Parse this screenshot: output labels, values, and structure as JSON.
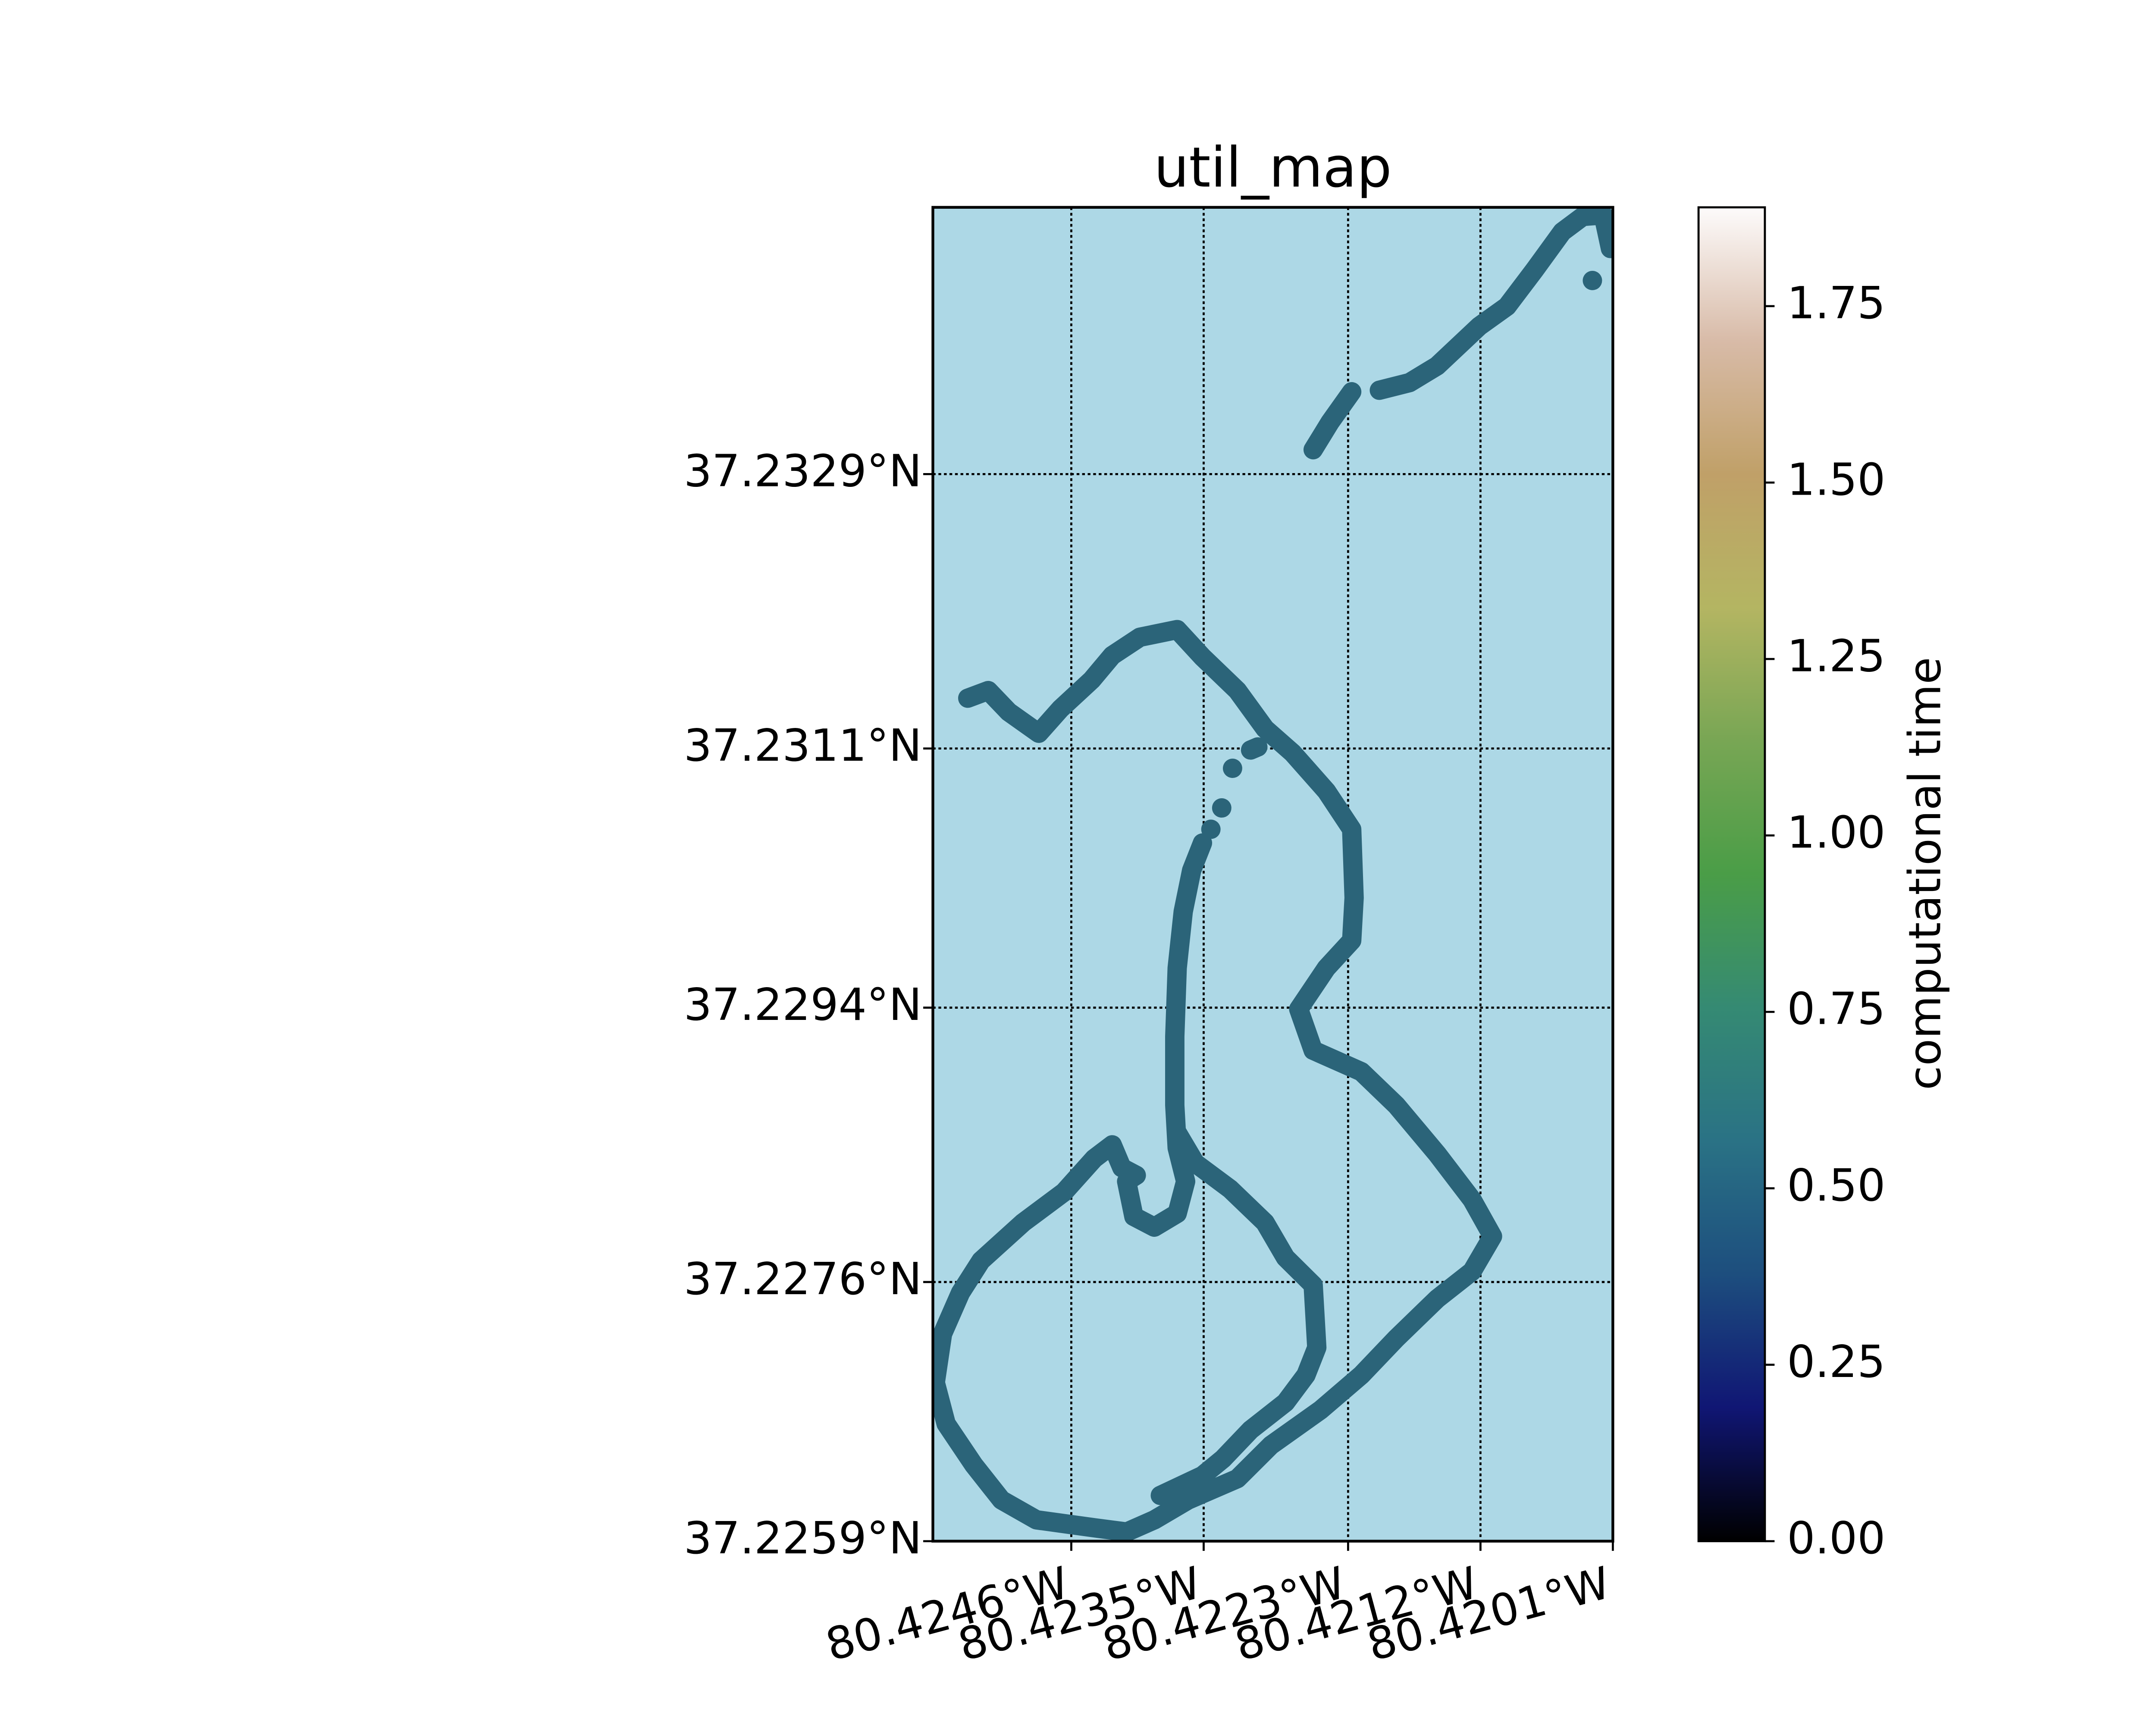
{
  "chart_data": {
    "type": "line",
    "title": "util_map",
    "x": [
      -80.42259,
      -80.42245,
      -80.42227,
      null,
      -80.42204,
      -80.42179,
      -80.42156,
      -80.42121,
      -80.42098,
      -80.42075,
      -80.42052,
      -80.42035,
      -80.42018,
      -80.42012,
      null,
      -80.42027,
      null,
      -80.42546,
      -80.42529,
      -80.42512,
      -80.42487,
      -80.42469,
      -80.42443,
      -80.42426,
      -80.42403,
      -80.42372,
      -80.42351,
      -80.42322,
      -80.42299,
      -80.42276,
      -80.42248,
      -80.42227,
      -80.42225,
      -80.42227,
      -80.42248,
      -80.42271,
      -80.42259,
      -80.42219,
      -80.4219,
      -80.42156,
      -80.42127,
      -80.4211,
      -80.42127,
      -80.42156,
      -80.4219,
      -80.42219,
      -80.42253,
      -80.42294,
      -80.42322,
      -80.42363,
      -80.42391,
      -80.42414,
      -80.42443,
      -80.42489,
      -80.42518,
      -80.42541,
      -80.42564,
      -80.42573,
      -80.42567,
      -80.42552,
      -80.42535,
      -80.425,
      -80.42466,
      -80.42441,
      -80.42426,
      -80.42418,
      -80.42406,
      -80.42414,
      -80.42408,
      -80.42391,
      -80.42372,
      -80.42365,
      -80.42372,
      -80.42374,
      -80.42374,
      -80.42372,
      -80.42367,
      -80.4236,
      -80.42351,
      null,
      -80.42344,
      null,
      -80.42335,
      null,
      -80.42326,
      null,
      -80.42311,
      -80.42305,
      null,
      -80.42372,
      -80.42357,
      -80.42328,
      -80.42299,
      -80.42282,
      -80.42259,
      -80.42256,
      -80.42265,
      -80.42282,
      -80.42311,
      -80.42334,
      -80.42351,
      -80.42386
    ],
    "series": [
      {
        "color": "#2b6479",
        "values": [
          37.23306,
          37.23324,
          37.23344,
          null,
          37.23345,
          37.2335,
          37.23361,
          37.23387,
          37.234,
          37.23424,
          37.23449,
          37.23459,
          37.2346,
          37.23438,
          null,
          37.23417,
          null,
          37.23143,
          37.23148,
          37.23134,
          37.2312,
          37.23136,
          37.23155,
          37.23171,
          37.23183,
          37.23188,
          37.2317,
          37.23148,
          37.23123,
          37.23107,
          37.23082,
          37.23057,
          37.23012,
          37.22984,
          37.22966,
          37.22939,
          37.22912,
          37.22898,
          37.22876,
          37.22844,
          37.22814,
          37.2279,
          37.22767,
          37.22749,
          37.22723,
          37.22699,
          37.22676,
          37.22653,
          37.22631,
          37.22617,
          37.22604,
          37.22596,
          37.22599,
          37.22604,
          37.22617,
          37.2264,
          37.22667,
          37.22694,
          37.22726,
          37.22753,
          37.22774,
          37.22799,
          37.22819,
          37.22841,
          37.2285,
          37.22835,
          37.2283,
          37.22826,
          37.22803,
          37.22796,
          37.22805,
          37.22826,
          37.22848,
          37.22876,
          37.22921,
          37.22966,
          37.23003,
          37.2303,
          37.23048,
          null,
          37.23057,
          null,
          37.23071,
          null,
          37.23097,
          null,
          37.23109,
          37.23111,
          null,
          37.22858,
          37.22838,
          37.22821,
          37.22799,
          37.22776,
          37.22758,
          37.22717,
          37.22699,
          37.22681,
          37.22663,
          37.22644,
          37.22633,
          37.2262
        ]
      }
    ],
    "xlim": [
      -80.42575,
      -80.4201
    ],
    "ylim": [
      37.2259,
      37.23465
    ],
    "xticks": [
      {
        "value": -80.4246,
        "label": "80.4246°W"
      },
      {
        "value": -80.4235,
        "label": "80.4235°W"
      },
      {
        "value": -80.4223,
        "label": "80.4223°W"
      },
      {
        "value": -80.4212,
        "label": "80.4212°W"
      },
      {
        "value": -80.4201,
        "label": "80.4201°W"
      }
    ],
    "yticks": [
      {
        "value": 37.2259,
        "label": "37.2259°N"
      },
      {
        "value": 37.2276,
        "label": "37.2276°N"
      },
      {
        "value": 37.2294,
        "label": "37.2294°N"
      },
      {
        "value": 37.2311,
        "label": "37.2311°N"
      },
      {
        "value": 37.2329,
        "label": "37.2329°N"
      }
    ],
    "grid": true,
    "background": "#add8e6",
    "colorbar": {
      "label": "computational time",
      "lim": [
        0,
        1.89
      ],
      "ticks": [
        {
          "value": 0,
          "label": "0.00"
        },
        0.25,
        {
          "value": 0.5,
          "label": "0.50"
        },
        0.75,
        {
          "value": 1,
          "label": "1.00"
        },
        1.25,
        {
          "value": 1.5,
          "label": "1.50"
        },
        1.75
      ],
      "colors": [
        "#000000",
        "#101674",
        "#1d4e7e",
        "#2a7285",
        "#358a73",
        "#4a9d47",
        "#78a654",
        "#b4b562",
        "#c0a068",
        "#d8bba8",
        "#fdfbfb"
      ]
    }
  }
}
